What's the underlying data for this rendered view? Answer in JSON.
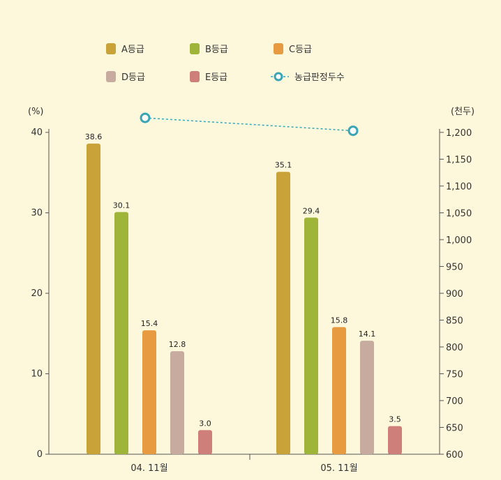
{
  "chart_data": {
    "type": "bar",
    "categories": [
      "04. 11월",
      "05. 11월"
    ],
    "series": [
      {
        "name": "A등급",
        "values": [
          38.6,
          35.1
        ],
        "color": "#c9a33a"
      },
      {
        "name": "B등급",
        "values": [
          30.1,
          29.4
        ],
        "color": "#9fb53a"
      },
      {
        "name": "C등급",
        "values": [
          15.4,
          15.8
        ],
        "color": "#e79a3f"
      },
      {
        "name": "D등급",
        "values": [
          12.8,
          14.1
        ],
        "color": "#c7ab9f"
      },
      {
        "name": "E등급",
        "values": [
          3.0,
          3.5
        ],
        "color": "#cf7f7a"
      }
    ],
    "line_series": {
      "name": "농급판정두수",
      "values": [
        1227,
        1203
      ],
      "color": "#3aa6b5"
    },
    "ylabel_left": "(%)",
    "ylabel_right": "(천두)",
    "ylim_left": [
      0,
      40
    ],
    "ylim_right": [
      600,
      1200
    ],
    "left_ticks": [
      "0",
      "10",
      "20",
      "30",
      "40"
    ],
    "right_ticks": [
      "600",
      "650",
      "700",
      "750",
      "800",
      "850",
      "900",
      "950",
      "1,000",
      "1,050",
      "1,100",
      "1,150",
      "1,200"
    ],
    "legend_position": "top"
  }
}
